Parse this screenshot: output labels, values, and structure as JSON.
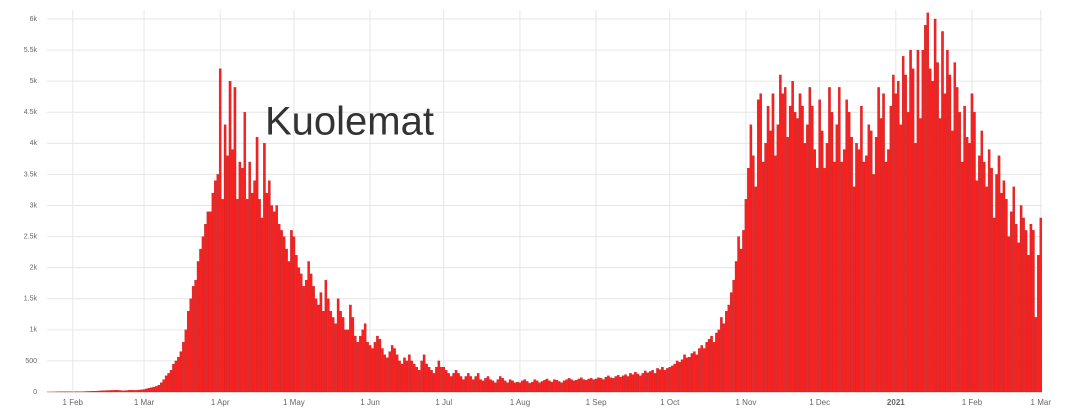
{
  "chart_data": {
    "type": "bar",
    "annotation": "Kuolemat",
    "categories": [
      null,
      null,
      null,
      null,
      null,
      null,
      null,
      null,
      null,
      null,
      "1 Feb",
      null,
      null,
      null,
      null,
      null,
      null,
      null,
      null,
      null,
      null,
      null,
      null,
      null,
      null,
      null,
      null,
      null,
      null,
      null,
      null,
      null,
      null,
      null,
      null,
      null,
      null,
      null,
      null,
      "1 Mar",
      null,
      null,
      null,
      null,
      null,
      null,
      null,
      null,
      null,
      null,
      null,
      null,
      null,
      null,
      null,
      null,
      null,
      null,
      null,
      null,
      null,
      null,
      null,
      null,
      null,
      null,
      null,
      null,
      null,
      null,
      "1 Apr",
      null,
      null,
      null,
      null,
      null,
      null,
      null,
      null,
      null,
      null,
      null,
      null,
      null,
      null,
      null,
      null,
      null,
      null,
      null,
      null,
      null,
      null,
      null,
      null,
      null,
      null,
      null,
      null,
      null,
      "1 May",
      null,
      null,
      null,
      null,
      null,
      null,
      null,
      null,
      null,
      null,
      null,
      null,
      null,
      null,
      null,
      null,
      null,
      null,
      null,
      null,
      null,
      null,
      null,
      null,
      null,
      null,
      null,
      null,
      null,
      null,
      "1 Jun",
      null,
      null,
      null,
      null,
      null,
      null,
      null,
      null,
      null,
      null,
      null,
      null,
      null,
      null,
      null,
      null,
      null,
      null,
      null,
      null,
      null,
      null,
      null,
      null,
      null,
      null,
      null,
      null,
      null,
      "1 Jul",
      null,
      null,
      null,
      null,
      null,
      null,
      null,
      null,
      null,
      null,
      null,
      null,
      null,
      null,
      null,
      null,
      null,
      null,
      null,
      null,
      null,
      null,
      null,
      null,
      null,
      null,
      null,
      null,
      null,
      null,
      "1 Aug",
      null,
      null,
      null,
      null,
      null,
      null,
      null,
      null,
      null,
      null,
      null,
      null,
      null,
      null,
      null,
      null,
      null,
      null,
      null,
      null,
      null,
      null,
      null,
      null,
      null,
      null,
      null,
      null,
      null,
      null,
      "1 Sep",
      null,
      null,
      null,
      null,
      null,
      null,
      null,
      null,
      null,
      null,
      null,
      null,
      null,
      null,
      null,
      null,
      null,
      null,
      null,
      null,
      null,
      null,
      null,
      null,
      null,
      null,
      null,
      null,
      null,
      "1 Oct",
      null,
      null,
      null,
      null,
      null,
      null,
      null,
      null,
      null,
      null,
      null,
      null,
      null,
      null,
      null,
      null,
      null,
      null,
      null,
      null,
      null,
      null,
      null,
      null,
      null,
      null,
      null,
      null,
      null,
      null,
      "1 Nov",
      null,
      null,
      null,
      null,
      null,
      null,
      null,
      null,
      null,
      null,
      null,
      null,
      null,
      null,
      null,
      null,
      null,
      null,
      null,
      null,
      null,
      null,
      null,
      null,
      null,
      null,
      null,
      null,
      null,
      "1 Dec",
      null,
      null,
      null,
      null,
      null,
      null,
      null,
      null,
      null,
      null,
      null,
      null,
      null,
      null,
      null,
      null,
      null,
      null,
      null,
      null,
      null,
      null,
      null,
      null,
      null,
      null,
      null,
      null,
      null,
      null,
      "2021",
      null,
      null,
      null,
      null,
      null,
      null,
      null,
      null,
      null,
      null,
      null,
      null,
      null,
      null,
      null,
      null,
      null,
      null,
      null,
      null,
      null,
      null,
      null,
      null,
      null,
      null,
      null,
      null,
      null,
      null,
      "1 Feb",
      null,
      null,
      null,
      null,
      null,
      null,
      null,
      null,
      null,
      null,
      null,
      null,
      null,
      null,
      null,
      null,
      null,
      null,
      null,
      null,
      null,
      null,
      null,
      null,
      null,
      null,
      null,
      "1 Mar"
    ],
    "values": [
      1,
      1,
      2,
      2,
      3,
      3,
      4,
      4,
      5,
      5,
      2,
      3,
      5,
      4,
      6,
      8,
      9,
      10,
      12,
      14,
      15,
      18,
      20,
      22,
      24,
      25,
      26,
      28,
      30,
      25,
      22,
      20,
      24,
      28,
      30,
      26,
      28,
      32,
      35,
      40,
      50,
      60,
      70,
      80,
      90,
      110,
      150,
      200,
      260,
      300,
      350,
      450,
      500,
      560,
      650,
      800,
      1000,
      1300,
      1500,
      1700,
      1800,
      2100,
      2300,
      2500,
      2700,
      2900,
      2900,
      3200,
      3400,
      3500,
      5200,
      3100,
      4300,
      3800,
      5000,
      3900,
      4900,
      3100,
      3700,
      3600,
      4500,
      3100,
      3700,
      3200,
      3400,
      4100,
      3100,
      2800,
      4000,
      3200,
      3400,
      3000,
      2900,
      3000,
      2700,
      2600,
      2500,
      2300,
      2100,
      2600,
      2500,
      2200,
      2000,
      1900,
      1700,
      1800,
      2100,
      1900,
      1700,
      1500,
      1400,
      1600,
      1300,
      1800,
      1500,
      1300,
      1200,
      1100,
      1500,
      1300,
      1200,
      1000,
      1000,
      1400,
      1200,
      900,
      800,
      900,
      1000,
      1100,
      800,
      750,
      700,
      800,
      900,
      850,
      700,
      600,
      550,
      650,
      750,
      700,
      600,
      500,
      450,
      550,
      500,
      600,
      500,
      450,
      400,
      350,
      500,
      600,
      450,
      400,
      350,
      300,
      400,
      500,
      400,
      400,
      350,
      300,
      250,
      300,
      350,
      300,
      250,
      200,
      250,
      300,
      250,
      200,
      250,
      300,
      200,
      180,
      220,
      250,
      200,
      180,
      150,
      200,
      250,
      220,
      180,
      150,
      200,
      180,
      150,
      160,
      150,
      180,
      200,
      170,
      140,
      160,
      200,
      180,
      150,
      170,
      190,
      210,
      180,
      160,
      200,
      190,
      170,
      150,
      180,
      200,
      220,
      200,
      180,
      190,
      210,
      230,
      200,
      190,
      210,
      220,
      200,
      210,
      230,
      220,
      200,
      240,
      260,
      230,
      220,
      250,
      270,
      240,
      260,
      280,
      250,
      300,
      280,
      320,
      290,
      260,
      300,
      340,
      310,
      330,
      350,
      300,
      380,
      360,
      400,
      350,
      380,
      400,
      420,
      450,
      500,
      480,
      520,
      600,
      550,
      560,
      620,
      650,
      600,
      700,
      750,
      700,
      800,
      850,
      900,
      800,
      950,
      1000,
      1200,
      1100,
      1300,
      1400,
      1600,
      1800,
      2100,
      2500,
      2300,
      2600,
      3100,
      3600,
      4300,
      3800,
      3300,
      4700,
      4800,
      3700,
      4000,
      4600,
      4200,
      4800,
      3800,
      4300,
      5100,
      4800,
      4900,
      4100,
      4600,
      5000,
      4500,
      4400,
      4800,
      4600,
      4000,
      4300,
      4900,
      4600,
      3900,
      3600,
      4700,
      4200,
      3600,
      4000,
      4900,
      4500,
      3700,
      4300,
      4900,
      3700,
      3900,
      4700,
      4500,
      4100,
      3300,
      4000,
      3900,
      4600,
      3700,
      3800,
      4300,
      4200,
      3500,
      4100,
      4900,
      4400,
      4800,
      3700,
      3900,
      4600,
      5100,
      4800,
      5000,
      4300,
      5400,
      5100,
      4500,
      5500,
      5200,
      4000,
      5500,
      4400,
      5500,
      5900,
      6100,
      5200,
      5000,
      6000,
      5300,
      4400,
      5800,
      4800,
      5500,
      5100,
      4200,
      5300,
      4900,
      4500,
      3700,
      4600,
      4100,
      4000,
      4800,
      4500,
      3400,
      3800,
      4200,
      3700,
      3300,
      3900,
      3600,
      2800,
      3500,
      3800,
      3200,
      3400,
      3100,
      2500,
      2900,
      3300,
      2700,
      2400,
      3000,
      2800,
      2600,
      2200,
      2700,
      2600,
      1200,
      2200,
      2800
    ],
    "color": "#f52222",
    "ylim": [
      0,
      6145
    ],
    "yticks": [
      0,
      500,
      {
        "value": 1000,
        "label": "1k"
      },
      {
        "value": 1500,
        "label": "1.5k"
      },
      {
        "value": 2000,
        "label": "2k"
      },
      {
        "value": 2500,
        "label": "2.5k"
      },
      {
        "value": 3000,
        "label": "3k"
      },
      {
        "value": 3500,
        "label": "3.5k"
      },
      {
        "value": 4000,
        "label": "4k"
      },
      {
        "value": 4500,
        "label": "4.5k"
      },
      {
        "value": 5000,
        "label": "5k"
      },
      {
        "value": 5500,
        "label": "5.5k"
      },
      {
        "value": 6000,
        "label": "6k"
      }
    ],
    "grid": true
  }
}
